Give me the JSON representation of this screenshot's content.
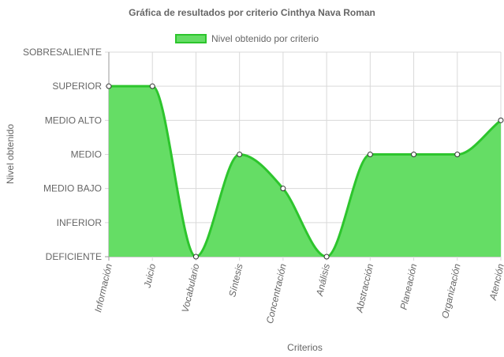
{
  "chart_data": {
    "type": "area",
    "title": "Gráfica de resultados por criterio Cinthya Nava Roman",
    "xlabel": "Criterios",
    "ylabel": "Nivel obtenido",
    "levels": [
      "DEFICIENTE",
      "INFERIOR",
      "MEDIO BAJO",
      "MEDIO",
      "MEDIO ALTO",
      "SUPERIOR",
      "SOBRESALIENTE"
    ],
    "categories": [
      "Información",
      "Juicio",
      "Vocabulario",
      "Síntesis",
      "Concentración",
      "Análisis",
      "Abstracción",
      "Planeación",
      "Organización",
      "Atención"
    ],
    "series": [
      {
        "name": "Nivel obtenido por criterio",
        "values": [
          5,
          5,
          0,
          3,
          2,
          0,
          3,
          3,
          3,
          4
        ]
      }
    ],
    "ylim": [
      0,
      6
    ],
    "legend_position": "top",
    "grid": true,
    "colors": {
      "fill": "#65dd65",
      "line": "#2dc52d",
      "grid": "#d9d9d9",
      "axis": "#9a9a9a"
    }
  }
}
